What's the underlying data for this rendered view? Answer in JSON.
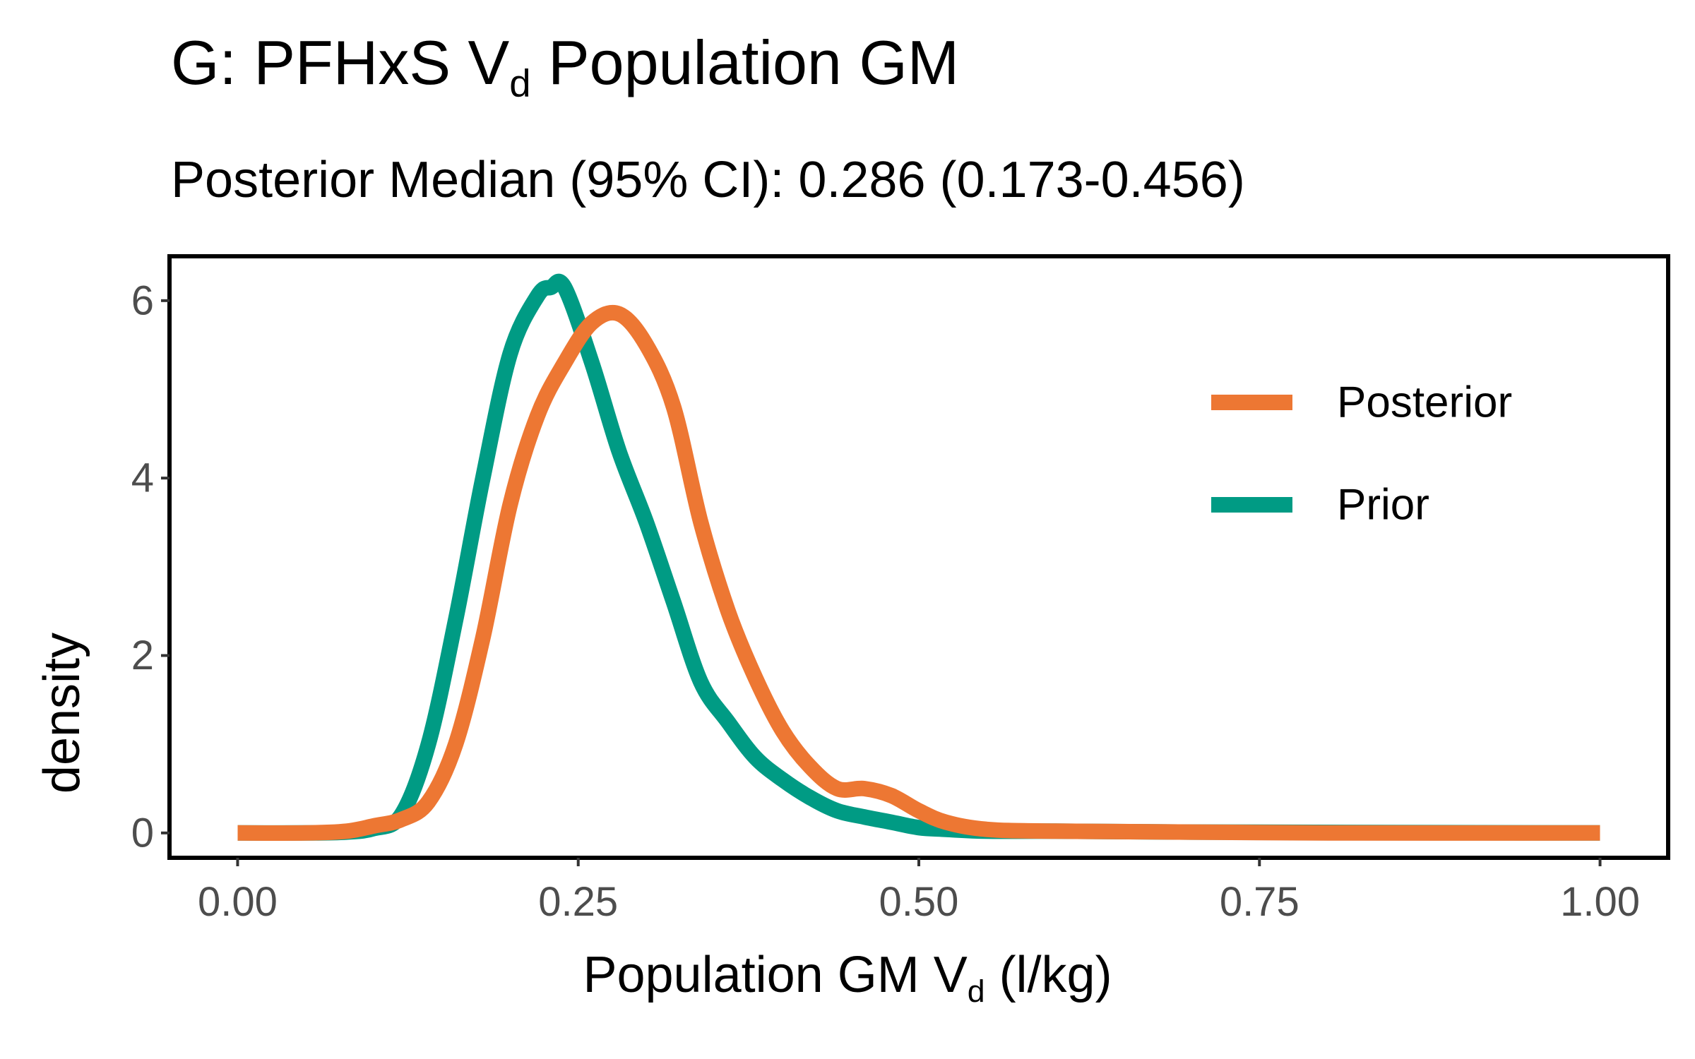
{
  "chart_data": {
    "type": "line",
    "title_prefix": "G: PFHxS V",
    "title_sub": "d",
    "title_suffix": " Population GM",
    "subtitle": "Posterior Median (95% CI): 0.286 (0.173-0.456)",
    "xlabel_prefix": "Population GM V",
    "xlabel_sub": "d",
    "xlabel_suffix": " (l/kg)",
    "ylabel": "density",
    "xlim": [
      -0.05,
      1.05
    ],
    "ylim": [
      -0.28,
      6.5
    ],
    "x_ticks": [
      0.0,
      0.25,
      0.5,
      0.75,
      1.0
    ],
    "x_tick_labels": [
      "0.00",
      "0.25",
      "0.50",
      "0.75",
      "1.00"
    ],
    "y_ticks": [
      0,
      2,
      4,
      6
    ],
    "y_tick_labels": [
      "0",
      "2",
      "4",
      "6"
    ],
    "legend_position": "right",
    "grid": false,
    "series": [
      {
        "name": "Posterior",
        "color": "#ED7733",
        "x": [
          0.0,
          0.05,
          0.08,
          0.1,
          0.12,
          0.14,
          0.16,
          0.18,
          0.2,
          0.22,
          0.24,
          0.26,
          0.28,
          0.3,
          0.32,
          0.34,
          0.36,
          0.38,
          0.4,
          0.42,
          0.44,
          0.46,
          0.48,
          0.5,
          0.52,
          0.55,
          0.6,
          0.7,
          0.8,
          1.0
        ],
        "y": [
          0.0,
          0.0,
          0.02,
          0.08,
          0.15,
          0.35,
          1.0,
          2.2,
          3.7,
          4.7,
          5.3,
          5.75,
          5.85,
          5.5,
          4.8,
          3.5,
          2.5,
          1.75,
          1.15,
          0.75,
          0.5,
          0.5,
          0.42,
          0.25,
          0.12,
          0.04,
          0.02,
          0.01,
          0.0,
          0.0
        ]
      },
      {
        "name": "Prior",
        "color": "#009B84",
        "x": [
          0.0,
          0.05,
          0.08,
          0.1,
          0.12,
          0.14,
          0.16,
          0.18,
          0.2,
          0.22,
          0.23,
          0.24,
          0.26,
          0.28,
          0.3,
          0.32,
          0.34,
          0.36,
          0.38,
          0.4,
          0.42,
          0.44,
          0.46,
          0.48,
          0.5,
          0.52,
          0.55,
          0.6,
          0.7,
          1.0
        ],
        "y": [
          0.0,
          0.0,
          0.01,
          0.05,
          0.2,
          1.0,
          2.4,
          4.0,
          5.4,
          6.05,
          6.15,
          6.15,
          5.3,
          4.3,
          3.5,
          2.6,
          1.7,
          1.25,
          0.85,
          0.6,
          0.4,
          0.25,
          0.18,
          0.12,
          0.06,
          0.04,
          0.02,
          0.02,
          0.01,
          0.0
        ]
      }
    ]
  }
}
